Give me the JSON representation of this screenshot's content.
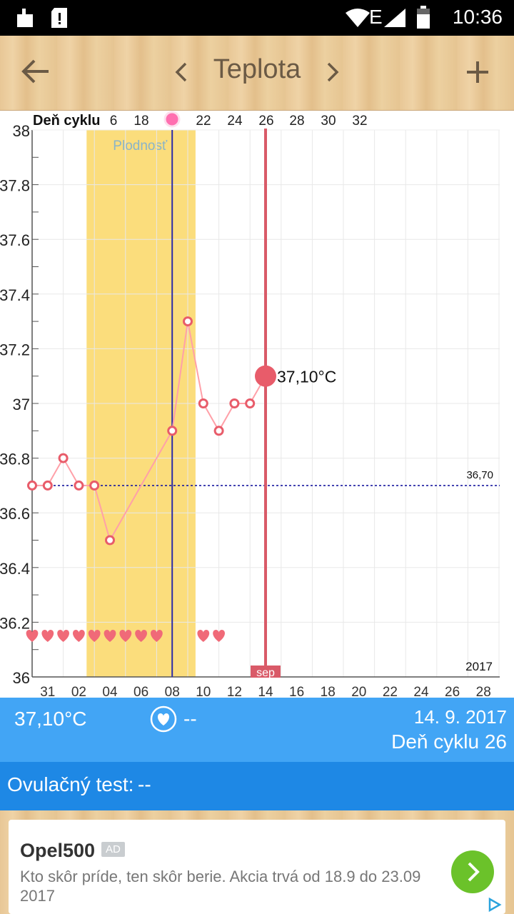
{
  "status_bar": {
    "time": "10:36",
    "network": "E"
  },
  "header": {
    "title": "Teplota",
    "back_icon": "arrow-left-icon",
    "prev_icon": "chevron-left-icon",
    "next_icon": "chevron-right-icon",
    "add_icon": "plus-icon"
  },
  "chart_data": {
    "type": "line",
    "top_axis_label": "Deň cyklu",
    "top_axis_ticks": [
      "6",
      "18",
      "22",
      "24",
      "26",
      "28",
      "30",
      "32"
    ],
    "x_ticks": [
      "31",
      "02",
      "04",
      "06",
      "08",
      "10",
      "12",
      "14",
      "16",
      "18",
      "20",
      "22",
      "24",
      "26",
      "28"
    ],
    "y_ticks": [
      "38",
      "37.8",
      "37.6",
      "37.4",
      "37.2",
      "37",
      "36.8",
      "36.6",
      "36.4",
      "36.2",
      "36"
    ],
    "ylim": [
      36,
      38
    ],
    "xlim": [
      0,
      30
    ],
    "x_tick_positions": [
      1,
      3,
      5,
      7,
      9,
      11,
      13,
      15,
      17,
      19,
      21,
      23,
      25,
      27,
      29
    ],
    "series": [
      {
        "x": [
          0,
          1,
          2,
          3,
          4,
          5,
          9,
          10,
          11,
          12,
          13,
          14,
          15
        ],
        "y": [
          36.7,
          36.7,
          36.8,
          36.7,
          36.7,
          36.5,
          36.9,
          37.3,
          37.0,
          36.9,
          37.0,
          37.0,
          37.1
        ]
      }
    ],
    "fertile_window": {
      "label": "Plodnosť",
      "x_start": 3.5,
      "x_end": 10.5
    },
    "ovulation_line_x": 9,
    "selected": {
      "x": 15,
      "y": 37.1,
      "label": "37,10°C"
    },
    "baseline": {
      "y": 36.7,
      "label": "36,70"
    },
    "hearts_x": [
      0,
      1,
      2,
      3,
      4,
      5,
      6,
      7,
      8,
      11,
      12
    ],
    "month_label": "sep",
    "year_label": "2017",
    "colors": {
      "line": "#ffa0a8",
      "point": "#e85c6a",
      "fertile": "#fbdd7c",
      "selected_line": "#d95a68",
      "ovulation": "#2c2ca8",
      "baseline": "#1a1aa0"
    }
  },
  "info": {
    "temp": "37,10°C",
    "intercourse": "--",
    "date": "14. 9. 2017",
    "cycle_day": "Deň cyklu 26",
    "heart_icon": "heart-circle-icon"
  },
  "ovulation_test": {
    "label": "Ovulačný test:",
    "value": "--"
  },
  "ad": {
    "title": "Opel500",
    "badge": "AD",
    "text": "Kto skôr príde, ten skôr berie. Akcia trvá od 18.9 do 23.09 2017",
    "cta_icon": "chevron-right-icon",
    "adchoices_icon": "adchoices-icon"
  }
}
